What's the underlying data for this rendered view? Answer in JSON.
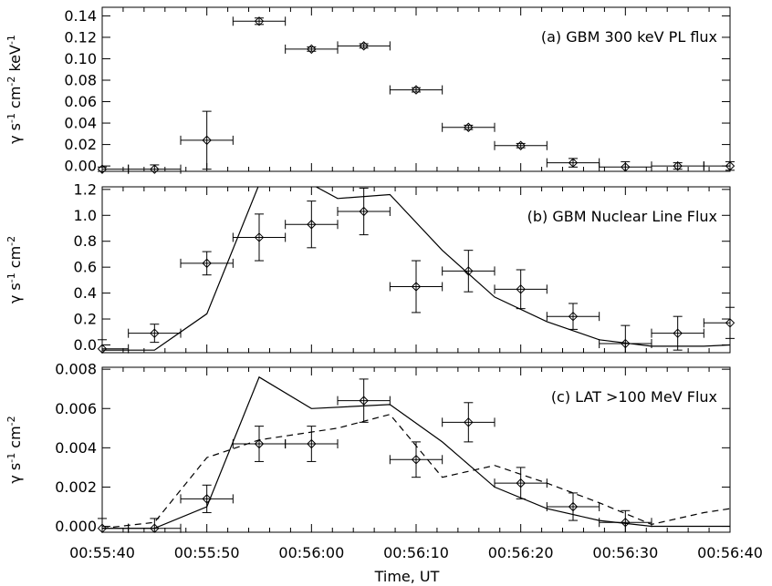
{
  "chart_data": {
    "type": "scatter",
    "x_axis": {
      "label": "Time, UT",
      "range_seconds": [
        0,
        60
      ],
      "ticks": [
        "00:55:40",
        "00:55:50",
        "00:56:00",
        "00:56:10",
        "00:56:20",
        "00:56:30",
        "00:56:40"
      ]
    },
    "panels": [
      {
        "id": "a",
        "title": "(a) GBM 300 keV PL flux",
        "ylabel": "γ s-1 cm-2 keV-1",
        "ylim": [
          -0.005,
          0.148
        ],
        "yticks": [
          "0.00",
          "0.02",
          "0.04",
          "0.06",
          "0.08",
          "0.10",
          "0.12",
          "0.14"
        ],
        "points": [
          {
            "x": "00:55:40",
            "xerr": 2.5,
            "y": -0.003,
            "yerr": 0.002
          },
          {
            "x": "00:55:45",
            "xerr": 2.5,
            "y": -0.003,
            "yerr": 0.004
          },
          {
            "x": "00:55:50",
            "xerr": 2.5,
            "y": 0.024,
            "yerr": 0.027
          },
          {
            "x": "00:55:55",
            "xerr": 2.5,
            "y": 0.135,
            "yerr": 0.003
          },
          {
            "x": "00:56:00",
            "xerr": 2.5,
            "y": 0.109,
            "yerr": 0.002
          },
          {
            "x": "00:56:05",
            "xerr": 2.5,
            "y": 0.112,
            "yerr": 0.002
          },
          {
            "x": "00:56:10",
            "xerr": 2.5,
            "y": 0.071,
            "yerr": 0.002
          },
          {
            "x": "00:56:15",
            "xerr": 2.5,
            "y": 0.036,
            "yerr": 0.002
          },
          {
            "x": "00:56:20",
            "xerr": 2.5,
            "y": 0.019,
            "yerr": 0.002
          },
          {
            "x": "00:56:25",
            "xerr": 2.5,
            "y": 0.003,
            "yerr": 0.004
          },
          {
            "x": "00:56:30",
            "xerr": 2.5,
            "y": -0.001,
            "yerr": 0.005
          },
          {
            "x": "00:56:35",
            "xerr": 2.5,
            "y": 0.0,
            "yerr": 0.003
          },
          {
            "x": "00:56:40",
            "xerr": 2.5,
            "y": 0.0,
            "yerr": 0.004
          }
        ]
      },
      {
        "id": "b",
        "title": "(b) GBM Nuclear Line Flux",
        "ylabel": "γ s-1 cm-2",
        "ylim": [
          -0.06,
          1.22
        ],
        "yticks": [
          "0.0",
          "0.2",
          "0.4",
          "0.6",
          "0.8",
          "1.0",
          "1.2"
        ],
        "points": [
          {
            "x": "00:55:40",
            "xerr": 2.5,
            "y": -0.03,
            "yerr": 0.07
          },
          {
            "x": "00:55:45",
            "xerr": 2.5,
            "y": 0.09,
            "yerr": 0.07
          },
          {
            "x": "00:55:50",
            "xerr": 2.5,
            "y": 0.63,
            "yerr": 0.09
          },
          {
            "x": "00:55:55",
            "xerr": 2.5,
            "y": 0.83,
            "yerr": 0.18
          },
          {
            "x": "00:56:00",
            "xerr": 2.5,
            "y": 0.93,
            "yerr": 0.18
          },
          {
            "x": "00:56:05",
            "xerr": 2.5,
            "y": 1.03,
            "yerr": 0.18
          },
          {
            "x": "00:56:10",
            "xerr": 2.5,
            "y": 0.45,
            "yerr": 0.2
          },
          {
            "x": "00:56:15",
            "xerr": 2.5,
            "y": 0.57,
            "yerr": 0.16
          },
          {
            "x": "00:56:20",
            "xerr": 2.5,
            "y": 0.43,
            "yerr": 0.15
          },
          {
            "x": "00:56:25",
            "xerr": 2.5,
            "y": 0.22,
            "yerr": 0.1
          },
          {
            "x": "00:56:30",
            "xerr": 2.5,
            "y": 0.01,
            "yerr": 0.14
          },
          {
            "x": "00:56:35",
            "xerr": 2.5,
            "y": 0.09,
            "yerr": 0.13
          },
          {
            "x": "00:56:40",
            "xerr": 2.5,
            "y": 0.17,
            "yerr": 0.12
          }
        ],
        "solid_curve": [
          [
            0,
            -0.04
          ],
          [
            5,
            -0.04
          ],
          [
            10,
            0.24
          ],
          [
            15,
            1.24
          ],
          [
            20,
            1.24
          ],
          [
            22.5,
            1.13
          ],
          [
            27.5,
            1.16
          ],
          [
            32.5,
            0.73
          ],
          [
            37.5,
            0.37
          ],
          [
            42.5,
            0.18
          ],
          [
            47.5,
            0.04
          ],
          [
            52.5,
            -0.01
          ],
          [
            57.5,
            -0.01
          ],
          [
            60,
            0.0
          ]
        ]
      },
      {
        "id": "c",
        "title": "(c) LAT >100 MeV Flux",
        "ylabel": "γ s-1 cm-2",
        "ylim": [
          -0.0003,
          0.0081
        ],
        "yticks": [
          "0.000",
          "0.002",
          "0.004",
          "0.006",
          "0.008"
        ],
        "points": [
          {
            "x": "00:55:40",
            "xerr": 2.5,
            "y": -0.0001,
            "yerr": 0.0005
          },
          {
            "x": "00:55:45",
            "xerr": 2.5,
            "y": -0.0001,
            "yerr": 0.0005
          },
          {
            "x": "00:55:50",
            "xerr": 2.5,
            "y": 0.0014,
            "yerr": 0.0007
          },
          {
            "x": "00:55:55",
            "xerr": 2.5,
            "y": 0.0042,
            "yerr": 0.0009
          },
          {
            "x": "00:56:00",
            "xerr": 2.5,
            "y": 0.0042,
            "yerr": 0.0009
          },
          {
            "x": "00:56:05",
            "xerr": 2.5,
            "y": 0.0064,
            "yerr": 0.0011
          },
          {
            "x": "00:56:10",
            "xerr": 2.5,
            "y": 0.0034,
            "yerr": 0.0009
          },
          {
            "x": "00:56:15",
            "xerr": 2.5,
            "y": 0.0053,
            "yerr": 0.001
          },
          {
            "x": "00:56:20",
            "xerr": 2.5,
            "y": 0.0022,
            "yerr": 0.0008
          },
          {
            "x": "00:56:25",
            "xerr": 2.5,
            "y": 0.001,
            "yerr": 0.0007
          },
          {
            "x": "00:56:30",
            "xerr": 2.5,
            "y": 0.0002,
            "yerr": 0.0006
          }
        ],
        "solid_curve": [
          [
            0,
            -0.0001
          ],
          [
            5,
            -0.0001
          ],
          [
            10,
            0.001
          ],
          [
            15,
            0.0076
          ],
          [
            20,
            0.006
          ],
          [
            27.5,
            0.0062
          ],
          [
            32.5,
            0.0043
          ],
          [
            37.5,
            0.002
          ],
          [
            42.5,
            0.0009
          ],
          [
            47.5,
            0.0003
          ],
          [
            52.5,
            0.0
          ],
          [
            57.5,
            0.0
          ],
          [
            60,
            0.0
          ]
        ],
        "dashed_curve": [
          [
            0,
            -0.0001
          ],
          [
            5,
            0.0002
          ],
          [
            10,
            0.0035
          ],
          [
            15,
            0.0044
          ],
          [
            22.5,
            0.005
          ],
          [
            27.5,
            0.0057
          ],
          [
            32.5,
            0.0025
          ],
          [
            37.5,
            0.0031
          ],
          [
            42.5,
            0.0022
          ],
          [
            47.5,
            0.0012
          ],
          [
            52.5,
            0.0001
          ],
          [
            57.5,
            0.0007
          ],
          [
            60,
            0.0009
          ]
        ]
      }
    ]
  }
}
